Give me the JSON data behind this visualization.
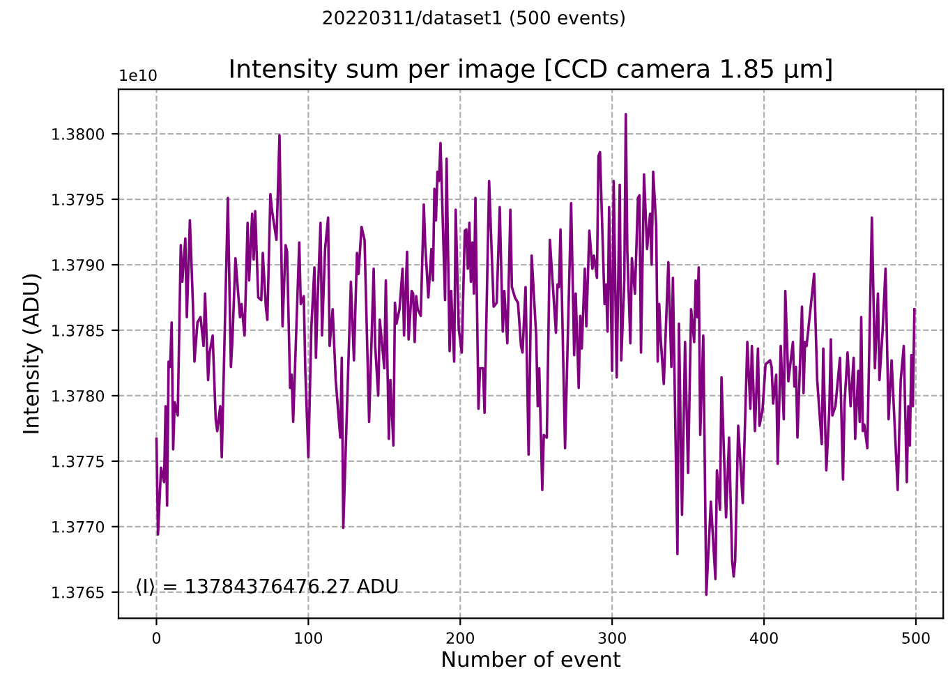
{
  "chart_data": {
    "type": "line",
    "title": "20220311/dataset1 (500 events)",
    "subtitle": "Intensity sum per image [CCD camera 1.85 μm]",
    "xlabel": "Number of event",
    "ylabel": "Intensity (ADU)",
    "annotations": [
      "⟨I⟩ = 13784376476.27 ADU",
      "1e10"
    ],
    "xlim": [
      -25,
      518
    ],
    "xticks": [
      0,
      100,
      200,
      300,
      400,
      500
    ],
    "ylim": [
      1.3763,
      1.38034
    ],
    "yticks": [
      {
        "value": 1.3765,
        "label": "1.3765"
      },
      {
        "value": 1.377,
        "label": "1.3770"
      },
      {
        "value": 1.3775,
        "label": "1.3775"
      },
      {
        "value": 1.378,
        "label": "1.3780"
      },
      {
        "value": 1.3785,
        "label": "1.3785"
      },
      {
        "value": 1.379,
        "label": "1.3790"
      },
      {
        "value": 1.3795,
        "label": "1.3795"
      },
      {
        "value": 1.38,
        "label": "1.3800"
      }
    ],
    "grid": true,
    "line_style": "solid",
    "marker": "none",
    "series": [
      {
        "color": "#800080",
        "x": [
          0,
          1,
          3,
          5,
          6,
          7,
          8,
          9,
          10,
          11,
          12,
          14,
          16,
          17,
          19,
          20,
          22,
          24,
          25,
          27,
          29,
          31,
          32,
          34,
          35,
          37,
          39,
          40,
          42,
          43,
          47,
          49,
          50,
          52,
          55,
          56,
          58,
          60,
          61,
          63,
          64,
          65,
          67,
          69,
          70,
          72,
          73,
          75,
          76,
          77,
          79,
          81,
          83,
          85,
          86,
          88,
          89,
          90,
          94,
          95,
          97,
          98,
          100,
          102,
          104,
          105,
          106,
          108,
          109,
          111,
          113,
          114,
          116,
          118,
          121,
          122,
          123,
          128,
          130,
          132,
          133,
          135,
          137,
          140,
          143,
          144,
          146,
          147,
          150,
          151,
          153,
          154,
          156,
          157,
          158,
          160,
          162,
          163,
          165,
          166,
          168,
          169,
          170,
          171,
          172,
          174,
          176,
          177,
          179,
          181,
          182,
          183,
          184,
          185,
          186,
          187,
          188,
          190,
          191,
          193,
          194,
          196,
          197,
          199,
          201,
          203,
          204,
          205,
          206,
          207,
          208,
          209,
          210,
          212,
          213,
          215,
          216,
          219,
          222,
          224,
          226,
          228,
          229,
          231,
          233,
          234,
          236,
          238,
          240,
          241,
          243,
          245,
          247,
          250,
          251,
          252,
          254,
          255,
          257,
          259,
          263,
          264,
          265,
          266,
          269,
          273,
          275,
          276,
          278,
          279,
          280,
          282,
          283,
          285,
          287,
          288,
          290,
          291,
          292,
          295,
          296,
          297,
          298,
          300,
          301,
          303,
          305,
          306,
          308,
          309,
          310,
          312,
          313,
          315,
          317,
          318,
          319,
          321,
          323,
          325,
          326,
          327,
          329,
          330,
          331,
          332,
          334,
          337,
          339,
          340,
          343,
          344,
          346,
          348,
          350,
          352,
          354,
          355,
          356,
          357,
          358,
          360,
          362,
          365,
          368,
          369,
          371,
          372,
          375,
          377,
          379,
          380,
          381,
          383,
          384,
          386,
          389,
          391,
          392,
          394,
          396,
          397,
          399,
          401,
          404,
          405,
          406,
          408,
          409,
          411,
          413,
          414,
          416,
          419,
          420,
          421,
          422,
          425,
          426,
          427,
          428,
          429,
          433,
          435,
          438,
          439,
          441,
          443,
          444,
          445,
          447,
          450,
          452,
          453,
          455,
          457,
          459,
          460,
          462,
          463,
          464,
          465,
          466,
          468,
          471,
          473,
          475,
          476,
          478,
          480,
          482,
          484,
          488,
          490,
          492,
          494,
          495,
          496,
          497,
          498,
          499
        ],
        "values": [
          1.37767,
          1.37694,
          1.37745,
          1.37734,
          1.37792,
          1.37716,
          1.37826,
          1.37822,
          1.37856,
          1.37759,
          1.37795,
          1.37785,
          1.37915,
          1.37887,
          1.3792,
          1.3786,
          1.37934,
          1.3787,
          1.37826,
          1.37856,
          1.3786,
          1.37838,
          1.37878,
          1.37812,
          1.37833,
          1.37846,
          1.37782,
          1.37773,
          1.37792,
          1.37753,
          1.37951,
          1.37822,
          1.37843,
          1.37905,
          1.3786,
          1.3787,
          1.37846,
          1.37932,
          1.37888,
          1.37939,
          1.37904,
          1.37941,
          1.37875,
          1.37873,
          1.37909,
          1.37868,
          1.37858,
          1.37954,
          1.37942,
          1.37934,
          1.37919,
          1.37999,
          1.37853,
          1.37915,
          1.3791,
          1.37806,
          1.37816,
          1.3778,
          1.37917,
          1.3787,
          1.37876,
          1.37819,
          1.37753,
          1.37853,
          1.37898,
          1.37829,
          1.3787,
          1.37932,
          1.37846,
          1.37912,
          1.37936,
          1.37838,
          1.37866,
          1.37812,
          1.37768,
          1.37829,
          1.37699,
          1.37887,
          1.37827,
          1.37909,
          1.37893,
          1.37929,
          1.37919,
          1.3778,
          1.37897,
          1.37838,
          1.378,
          1.37858,
          1.37821,
          1.37888,
          1.37767,
          1.37812,
          1.37762,
          1.37871,
          1.37855,
          1.37866,
          1.37897,
          1.37846,
          1.3791,
          1.37843,
          1.3788,
          1.37878,
          1.37841,
          1.37876,
          1.37866,
          1.37861,
          1.37946,
          1.37914,
          1.37875,
          1.37912,
          1.37888,
          1.37958,
          1.37934,
          1.37971,
          1.37964,
          1.37993,
          1.37953,
          1.37873,
          1.37981,
          1.37834,
          1.3788,
          1.37826,
          1.37942,
          1.37851,
          1.37833,
          1.37926,
          1.37927,
          1.37897,
          1.37932,
          1.37887,
          1.37917,
          1.37878,
          1.37951,
          1.3779,
          1.37821,
          1.37821,
          1.37787,
          1.37964,
          1.37868,
          1.37871,
          1.37944,
          1.37849,
          1.3788,
          1.3784,
          1.37942,
          1.37883,
          1.37875,
          1.37871,
          1.37838,
          1.37833,
          1.37883,
          1.37755,
          1.37907,
          1.37846,
          1.37792,
          1.37821,
          1.37728,
          1.3777,
          1.37768,
          1.37919,
          1.37848,
          1.37885,
          1.37883,
          1.37927,
          1.3776,
          1.37947,
          1.37831,
          1.37878,
          1.37806,
          1.37861,
          1.37836,
          1.37897,
          1.37853,
          1.37926,
          1.37897,
          1.37907,
          1.3789,
          1.37983,
          1.37986,
          1.3787,
          1.37885,
          1.37849,
          1.37944,
          1.37819,
          1.37964,
          1.37814,
          1.37961,
          1.37827,
          1.37888,
          1.38015,
          1.3791,
          1.3784,
          1.37905,
          1.37878,
          1.37951,
          1.37953,
          1.37833,
          1.37969,
          1.37912,
          1.37939,
          1.379,
          1.37971,
          1.3793,
          1.37826,
          1.3787,
          1.37843,
          1.37809,
          1.37902,
          1.37822,
          1.3789,
          1.37679,
          1.37855,
          1.37709,
          1.37841,
          1.37741,
          1.37866,
          1.37841,
          1.37888,
          1.3786,
          1.37898,
          1.3777,
          1.37846,
          1.37648,
          1.37719,
          1.3766,
          1.37743,
          1.37713,
          1.37814,
          1.37707,
          1.37768,
          1.37674,
          1.37662,
          1.37674,
          1.37777,
          1.37758,
          1.37718,
          1.37841,
          1.3779,
          1.37838,
          1.37773,
          1.37836,
          1.37777,
          1.37789,
          1.37824,
          1.37827,
          1.37822,
          1.37794,
          1.37816,
          1.37748,
          1.37838,
          1.37782,
          1.3788,
          1.37811,
          1.37841,
          1.37807,
          1.37822,
          1.37768,
          1.37868,
          1.37802,
          1.37841,
          1.37838,
          1.37849,
          1.37893,
          1.37812,
          1.37763,
          1.37836,
          1.37743,
          1.3779,
          1.37843,
          1.37785,
          1.37792,
          1.37829,
          1.37736,
          1.37794,
          1.37833,
          1.37792,
          1.37829,
          1.37767,
          1.37819,
          1.3778,
          1.3786,
          1.37773,
          1.37778,
          1.3776,
          1.37936,
          1.37821,
          1.37878,
          1.37812,
          1.37848,
          1.37897,
          1.37782,
          1.37827,
          1.37728,
          1.37812,
          1.37838,
          1.37734,
          1.37792,
          1.37762,
          1.37831,
          1.37792,
          1.37866
        ]
      }
    ]
  }
}
